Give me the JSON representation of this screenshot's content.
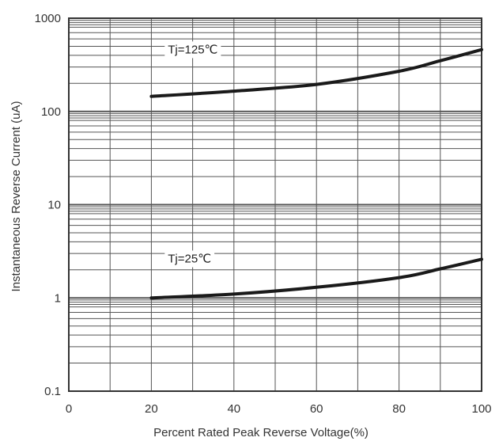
{
  "chart_data": {
    "type": "line",
    "xlabel": "Percent Rated Peak Reverse Voltage(%)",
    "ylabel": "Instantaneous Reverse Current (uA)",
    "xlim": [
      0,
      100
    ],
    "ylim": [
      0.1,
      1000
    ],
    "yscale": "log",
    "grid": true,
    "x_ticks": [
      {
        "value": 0,
        "label": "0"
      },
      {
        "value": 20,
        "label": "20"
      },
      {
        "value": 40,
        "label": "40"
      },
      {
        "value": 60,
        "label": "60"
      },
      {
        "value": 80,
        "label": "80"
      },
      {
        "value": 100,
        "label": "100"
      }
    ],
    "y_ticks": [
      {
        "value": 0.1,
        "label": "0.1"
      },
      {
        "value": 1,
        "label": "1"
      },
      {
        "value": 10,
        "label": "10"
      },
      {
        "value": 100,
        "label": "100"
      },
      {
        "value": 1000,
        "label": "1000"
      }
    ],
    "series": [
      {
        "name": "Tj=125℃",
        "x": [
          20,
          40,
          60,
          80,
          90,
          100
        ],
        "values": [
          145,
          165,
          195,
          270,
          350,
          460
        ],
        "label_at": {
          "x": 24,
          "y": 420
        }
      },
      {
        "name": "Tj=25℃",
        "x": [
          20,
          40,
          60,
          80,
          90,
          100
        ],
        "values": [
          1.0,
          1.1,
          1.3,
          1.65,
          2.05,
          2.6
        ],
        "label_at": {
          "x": 24,
          "y": 2.4
        }
      }
    ],
    "colors": {
      "line": "#1a1a1a",
      "grid": "#555555",
      "frame": "#333333"
    }
  }
}
